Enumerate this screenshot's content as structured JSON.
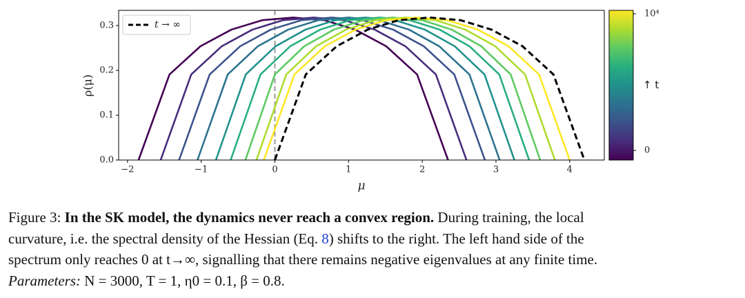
{
  "chart_data": {
    "type": "line",
    "xlabel": "μ",
    "ylabel": "ρ(μ)",
    "xlim": [
      -2.12,
      4.47
    ],
    "ylim": [
      0,
      0.334
    ],
    "xticks": [
      {
        "value": -2,
        "label": "−2"
      },
      {
        "value": -1,
        "label": "−1"
      },
      0,
      1,
      2,
      3,
      4
    ],
    "yticks": [
      {
        "value": 0,
        "label": "0.0"
      },
      0.1,
      0.2,
      0.3
    ],
    "vline": 0,
    "legend": "upper left",
    "series": [
      {
        "color": "#440154",
        "x": [
          -1.85,
          -1.43,
          -1.01,
          -0.59,
          -0.17,
          0.25,
          0.67,
          1.09,
          1.51,
          1.93,
          2.35
        ],
        "values": [
          0,
          0.191,
          0.254,
          0.291,
          0.312,
          0.318,
          0.312,
          0.291,
          0.254,
          0.191,
          0
        ]
      },
      {
        "color": "#472d7b",
        "x": [
          -1.55,
          -1.135,
          -0.72,
          -0.305,
          0.11,
          0.525,
          0.94,
          1.355,
          1.77,
          2.185,
          2.6
        ],
        "values": [
          0,
          0.191,
          0.254,
          0.291,
          0.312,
          0.318,
          0.312,
          0.291,
          0.254,
          0.191,
          0
        ]
      },
      {
        "color": "#3b528b",
        "x": [
          -1.3,
          -0.885,
          -0.47,
          -0.055,
          0.36,
          0.775,
          1.19,
          1.605,
          2.02,
          2.435,
          2.85
        ],
        "values": [
          0,
          0.191,
          0.254,
          0.291,
          0.312,
          0.318,
          0.312,
          0.291,
          0.254,
          0.191,
          0
        ]
      },
      {
        "color": "#2c728e",
        "x": [
          -1.05,
          -0.64,
          -0.23,
          0.18,
          0.59,
          1.0,
          1.41,
          1.82,
          2.23,
          2.64,
          3.05
        ],
        "values": [
          0,
          0.191,
          0.254,
          0.291,
          0.312,
          0.318,
          0.312,
          0.291,
          0.254,
          0.191,
          0
        ]
      },
      {
        "color": "#21918c",
        "x": [
          -0.8,
          -0.395,
          0.01,
          0.415,
          0.82,
          1.225,
          1.63,
          2.035,
          2.44,
          2.845,
          3.25
        ],
        "values": [
          0,
          0.191,
          0.254,
          0.291,
          0.312,
          0.318,
          0.312,
          0.291,
          0.254,
          0.191,
          0
        ]
      },
      {
        "color": "#28ae80",
        "x": [
          -0.6,
          -0.195,
          0.21,
          0.615,
          1.02,
          1.425,
          1.83,
          2.235,
          2.64,
          3.045,
          3.45
        ],
        "values": [
          0,
          0.191,
          0.254,
          0.291,
          0.312,
          0.318,
          0.312,
          0.291,
          0.254,
          0.191,
          0
        ]
      },
      {
        "color": "#5ec962",
        "x": [
          -0.4,
          0,
          0.4,
          0.8,
          1.2,
          1.6,
          2.0,
          2.4,
          2.8,
          3.2,
          3.6
        ],
        "values": [
          0,
          0.191,
          0.254,
          0.291,
          0.312,
          0.318,
          0.312,
          0.291,
          0.254,
          0.191,
          0
        ]
      },
      {
        "color": "#addc30",
        "x": [
          -0.25,
          0.155,
          0.56,
          0.965,
          1.37,
          1.775,
          2.18,
          2.585,
          2.99,
          3.395,
          3.8
        ],
        "values": [
          0,
          0.191,
          0.254,
          0.291,
          0.312,
          0.318,
          0.312,
          0.291,
          0.254,
          0.191,
          0
        ]
      },
      {
        "color": "#fde725",
        "x": [
          -0.15,
          0.265,
          0.68,
          1.095,
          1.51,
          1.925,
          2.34,
          2.755,
          3.17,
          3.585,
          4.0
        ],
        "values": [
          0,
          0.191,
          0.254,
          0.291,
          0.312,
          0.318,
          0.312,
          0.291,
          0.254,
          0.191,
          0
        ]
      },
      {
        "name": "t → ∞",
        "color": "#000000",
        "dashed": true,
        "x": [
          0,
          0.42,
          0.84,
          1.26,
          1.68,
          2.1,
          2.52,
          2.94,
          3.36,
          3.78,
          4.2
        ],
        "values": [
          0,
          0.191,
          0.254,
          0.291,
          0.312,
          0.318,
          0.312,
          0.291,
          0.254,
          0.191,
          0
        ]
      }
    ],
    "colorbar": {
      "label": "↑ t",
      "lim": [
        -700,
        10250
      ],
      "ticks": [
        {
          "value": 0,
          "label": "0"
        },
        {
          "value": 10000,
          "label": "10⁴"
        }
      ]
    }
  },
  "caption": {
    "figure_label": "Figure 3:",
    "bold": "In the SK model, the dynamics never reach a convex region.",
    "text1": "During training, the local",
    "text2": "curvature, i.e. the spectral density of the Hessian (Eq.",
    "ref": "8",
    "text3": ") shifts to the right. The left hand side of the",
    "text4": "spectrum only reaches 0 at t→∞, signalling that there remains negative eigenvalues at any finite time.",
    "params_label": "Parameters:",
    "params": "N = 3000, T = 1, η0 = 0.1, β = 0.8."
  }
}
